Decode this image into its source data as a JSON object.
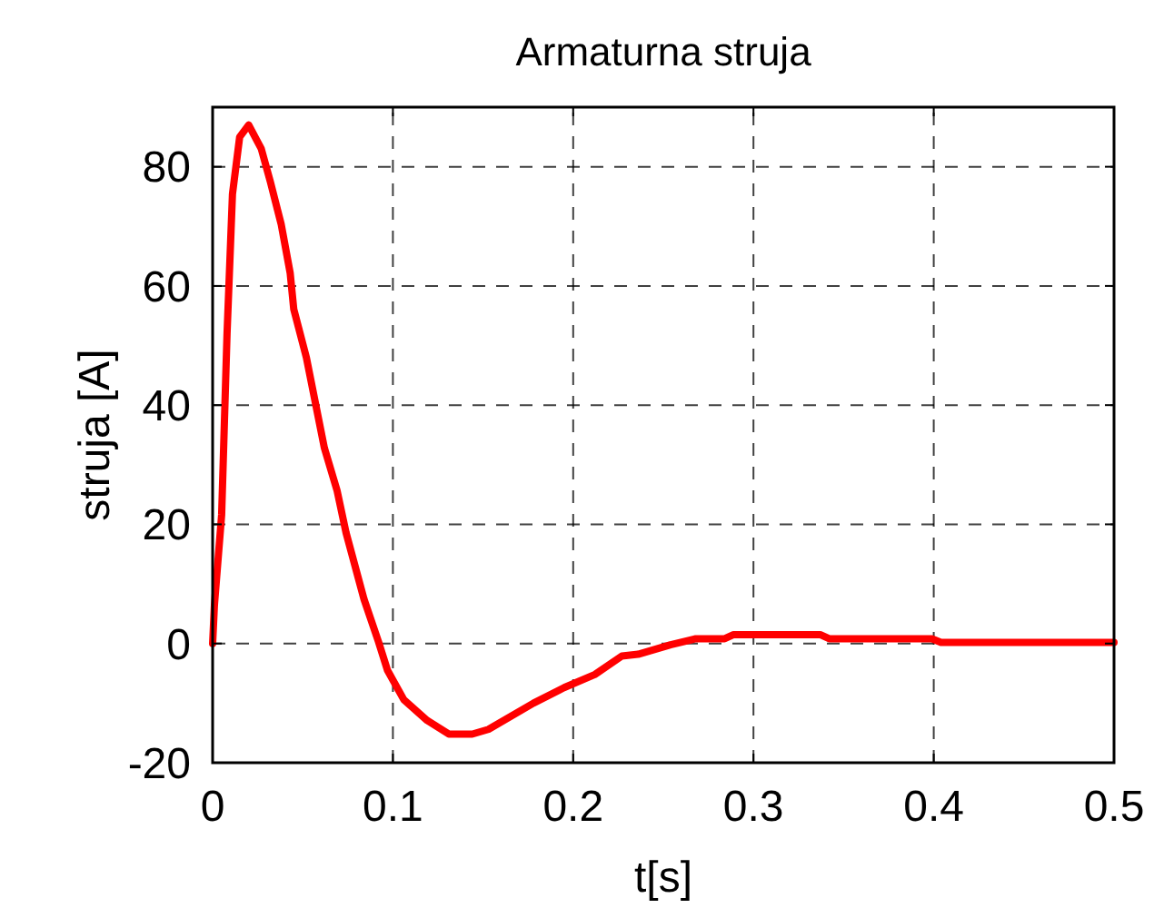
{
  "chart_data": {
    "type": "line",
    "title": "Armaturna struja",
    "xlabel": "t[s]",
    "ylabel": "struja [A]",
    "xlim": [
      0,
      0.5
    ],
    "ylim": [
      -20,
      90
    ],
    "xticks": [
      0,
      0.1,
      0.2,
      0.3,
      0.4,
      0.5
    ],
    "yticks": [
      -20,
      0,
      20,
      40,
      60,
      80
    ],
    "grid": true,
    "marker": "none",
    "line_style": "solid",
    "series": [
      {
        "color": "#ff0000",
        "x": [
          0,
          0.001,
          0.005,
          0.008,
          0.011,
          0.015,
          0.02,
          0.027,
          0.032,
          0.038,
          0.043,
          0.045,
          0.052,
          0.062,
          0.069,
          0.074,
          0.084,
          0.092,
          0.097,
          0.106,
          0.119,
          0.131,
          0.144,
          0.153,
          0.178,
          0.195,
          0.212,
          0.227,
          0.236,
          0.254,
          0.268,
          0.284,
          0.289,
          0.337,
          0.342,
          0.399,
          0.404,
          0.5
        ],
        "values": [
          0,
          6.5,
          21.6,
          52,
          75.4,
          85,
          87,
          83,
          77.5,
          70.4,
          62.2,
          56.1,
          48,
          32.8,
          25.7,
          18.6,
          7.4,
          0.3,
          -4.5,
          -9.4,
          -12.9,
          -15.2,
          -15.2,
          -14.4,
          -10,
          -7.4,
          -5.2,
          -2.1,
          -1.8,
          -0.2,
          0.8,
          0.8,
          1.5,
          1.5,
          0.8,
          0.8,
          0.2,
          0.2
        ]
      }
    ]
  }
}
